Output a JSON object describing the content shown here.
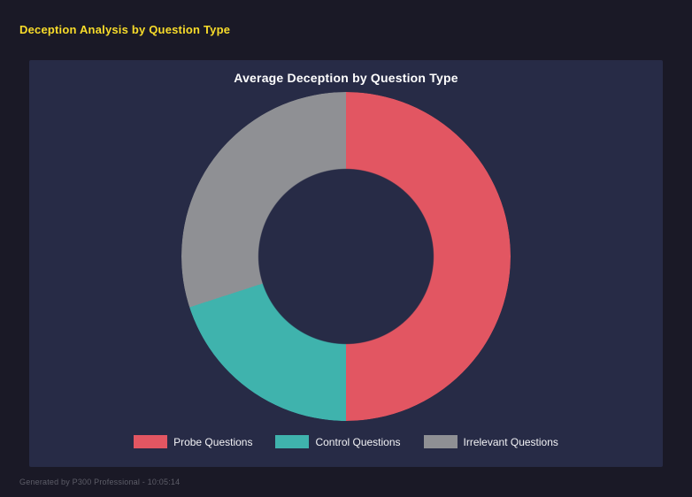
{
  "page": {
    "title": "Deception Analysis by Question Type",
    "footer": "Generated by P300 Professional - 10:05:14"
  },
  "colors": {
    "page_bg": "#1a1926",
    "panel_bg": "#272b46",
    "accent_yellow": "#f8dc2a"
  },
  "chart_data": {
    "type": "pie",
    "subtype": "donut",
    "title": "Average Deception by Question Type",
    "slices": [
      {
        "label": "Probe Questions",
        "value": 50,
        "color": "#e25662"
      },
      {
        "label": "Control Questions",
        "value": 20,
        "color": "#3fb3ad"
      },
      {
        "label": "Irrelevant Questions",
        "value": 30,
        "color": "#8f9094"
      }
    ],
    "values_unit": "percent-of-circle (estimated from arc angles)",
    "start_angle_deg": 0,
    "direction": "clockwise",
    "hole_ratio": 0.53,
    "legend_position": "bottom"
  }
}
